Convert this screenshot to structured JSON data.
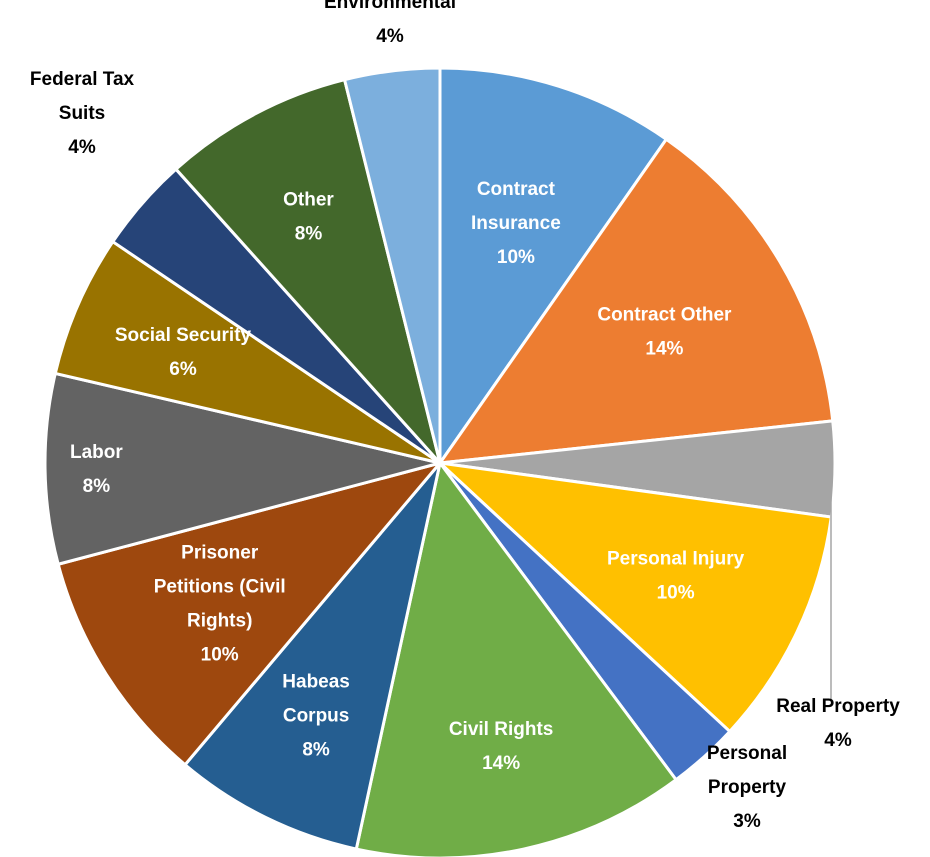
{
  "chart_data": {
    "type": "pie",
    "title": "",
    "slices": [
      {
        "name": "Contract Insurance",
        "label_lines": [
          "Contract",
          "Insurance"
        ],
        "value": 10,
        "display": "10%",
        "color": "#5B9BD5",
        "label_color": "#ffffff"
      },
      {
        "name": "Contract Other",
        "label_lines": [
          "Contract Other"
        ],
        "value": 14,
        "display": "14%",
        "color": "#ED7D31",
        "label_color": "#ffffff"
      },
      {
        "name": "Real Property",
        "label_lines": [
          "Real Property"
        ],
        "value": 4,
        "display": "4%",
        "color": "#A5A5A5",
        "label_color": "#000000"
      },
      {
        "name": "Personal Injury",
        "label_lines": [
          "Personal Injury"
        ],
        "value": 10,
        "display": "10%",
        "color": "#FFC000",
        "label_color": "#ffffff"
      },
      {
        "name": "Personal Property",
        "label_lines": [
          "Personal",
          "Property"
        ],
        "value": 3,
        "display": "3%",
        "color": "#4472C4",
        "label_color": "#000000"
      },
      {
        "name": "Civil Rights",
        "label_lines": [
          "Civil Rights"
        ],
        "value": 14,
        "display": "14%",
        "color": "#70AD47",
        "label_color": "#ffffff"
      },
      {
        "name": "Habeas Corpus",
        "label_lines": [
          "Habeas",
          "Corpus"
        ],
        "value": 8,
        "display": "8%",
        "color": "#255E91",
        "label_color": "#ffffff"
      },
      {
        "name": "Prisoner Petitions (Civil Rights)",
        "label_lines": [
          "Prisoner",
          "Petitions (Civil",
          "Rights)"
        ],
        "value": 10,
        "display": "10%",
        "color": "#9E480E",
        "label_color": "#ffffff"
      },
      {
        "name": "Labor",
        "label_lines": [
          "Labor"
        ],
        "value": 8,
        "display": "8%",
        "color": "#636363",
        "label_color": "#ffffff"
      },
      {
        "name": "Social Security",
        "label_lines": [
          "Social Security"
        ],
        "value": 6,
        "display": "6%",
        "color": "#997300",
        "label_color": "#ffffff"
      },
      {
        "name": "Federal Tax Suits",
        "label_lines": [
          "Federal Tax",
          "Suits"
        ],
        "value": 4,
        "display": "4%",
        "color": "#264478",
        "label_color": "#000000"
      },
      {
        "name": "Other",
        "label_lines": [
          "Other"
        ],
        "value": 8,
        "display": "8%",
        "color": "#43682B",
        "label_color": "#ffffff"
      },
      {
        "name": "Environmental",
        "label_lines": [
          "Environmental"
        ],
        "value": 4,
        "display": "4%",
        "color": "#7CAFDD",
        "label_color": "#000000"
      }
    ]
  }
}
